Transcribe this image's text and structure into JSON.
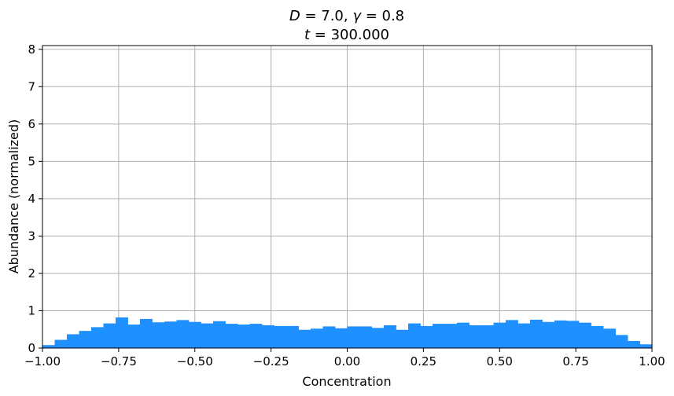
{
  "chart_data": {
    "type": "bar",
    "title": {
      "line1": {
        "var1": "D",
        "eq1": " = 7.0, ",
        "var2": "γ",
        "eq2": " = 0.8"
      },
      "line2": {
        "var": "t",
        "eq": " = 300.000"
      }
    },
    "xlabel": "Concentration",
    "ylabel": "Abundance (normalized)",
    "xlim": [
      -1.0,
      1.0
    ],
    "ylim": [
      0,
      8.1
    ],
    "xticks": [
      -1.0,
      -0.75,
      -0.5,
      -0.25,
      0.0,
      0.25,
      0.5,
      0.75,
      1.0
    ],
    "xtick_labels": [
      "−1.00",
      "−0.75",
      "−0.50",
      "−0.25",
      "0.00",
      "0.25",
      "0.50",
      "0.75",
      "1.00"
    ],
    "yticks": [
      0,
      1,
      2,
      3,
      4,
      5,
      6,
      7,
      8
    ],
    "ytick_labels": [
      "0",
      "1",
      "2",
      "3",
      "4",
      "5",
      "6",
      "7",
      "8"
    ],
    "grid": true,
    "bar_color": "#1e90ff",
    "bin_width": 0.04,
    "bin_edges_start": -1.0,
    "values": [
      0.08,
      0.22,
      0.37,
      0.46,
      0.56,
      0.66,
      0.82,
      0.63,
      0.78,
      0.69,
      0.71,
      0.75,
      0.7,
      0.66,
      0.72,
      0.65,
      0.63,
      0.65,
      0.61,
      0.59,
      0.59,
      0.49,
      0.52,
      0.58,
      0.53,
      0.58,
      0.58,
      0.54,
      0.61,
      0.49,
      0.66,
      0.59,
      0.65,
      0.65,
      0.68,
      0.61,
      0.61,
      0.68,
      0.75,
      0.66,
      0.76,
      0.7,
      0.74,
      0.73,
      0.68,
      0.59,
      0.52,
      0.35,
      0.19,
      0.1
    ]
  }
}
